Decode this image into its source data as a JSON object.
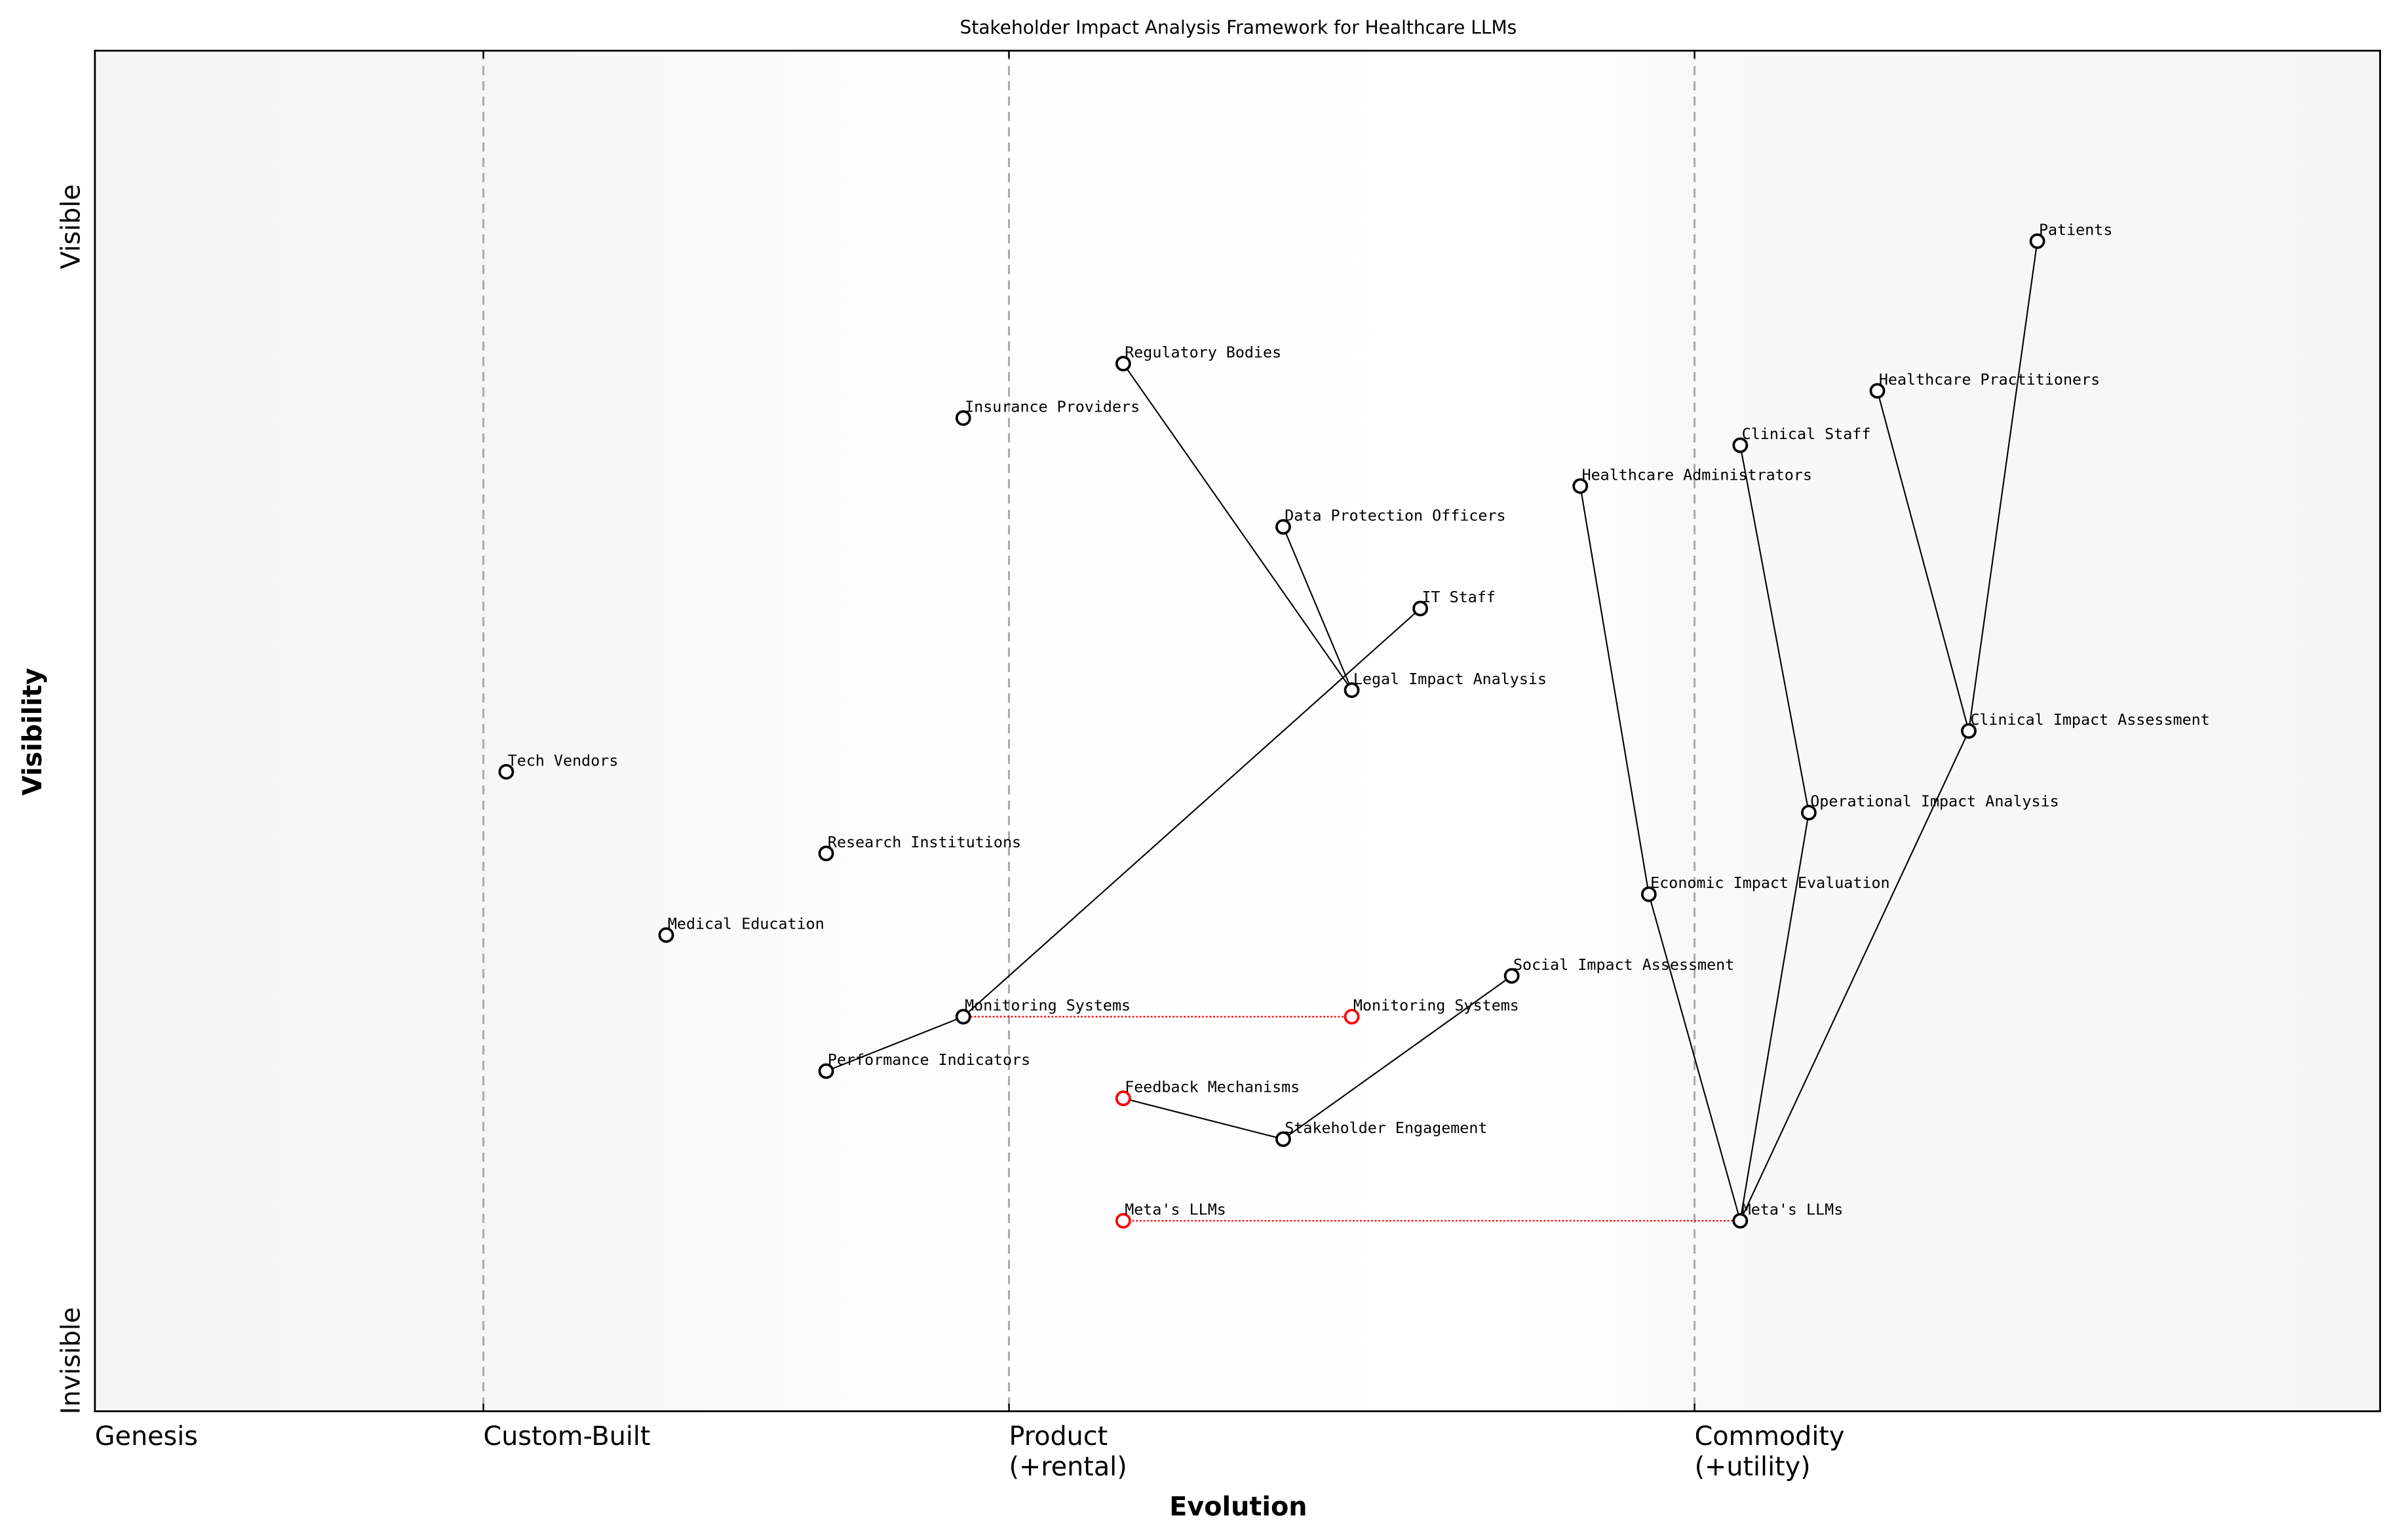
{
  "chart_data": {
    "type": "scatter",
    "title": "Stakeholder Impact Analysis Framework for Healthcare LLMs",
    "xlabel": "Evolution",
    "ylabel": "Visibility",
    "xlim": [
      0,
      1
    ],
    "ylim": [
      0,
      1
    ],
    "y_tick_labels": {
      "top": "Visible",
      "bottom": "Invisible"
    },
    "stages": [
      {
        "label": "Genesis",
        "x": 0.0
      },
      {
        "label": "Custom-Built",
        "x": 0.17
      },
      {
        "label": "Product\n(+rental)",
        "x": 0.4
      },
      {
        "label": "Commodity\n(+utility)",
        "x": 0.7
      }
    ],
    "grid": false,
    "components": [
      {
        "name": "Patients",
        "evolution": 0.85,
        "visibility": 0.86
      },
      {
        "name": "Healthcare Practitioners",
        "evolution": 0.78,
        "visibility": 0.75
      },
      {
        "name": "Clinical Staff",
        "evolution": 0.72,
        "visibility": 0.71
      },
      {
        "name": "Healthcare Administrators",
        "evolution": 0.65,
        "visibility": 0.68
      },
      {
        "name": "Regulatory Bodies",
        "evolution": 0.45,
        "visibility": 0.77
      },
      {
        "name": "Insurance Providers",
        "evolution": 0.38,
        "visibility": 0.73
      },
      {
        "name": "Data Protection Officers",
        "evolution": 0.52,
        "visibility": 0.65
      },
      {
        "name": "IT Staff",
        "evolution": 0.58,
        "visibility": 0.59
      },
      {
        "name": "Legal Impact Analysis",
        "evolution": 0.55,
        "visibility": 0.53
      },
      {
        "name": "Clinical Impact Assessment",
        "evolution": 0.82,
        "visibility": 0.5
      },
      {
        "name": "Tech Vendors",
        "evolution": 0.18,
        "visibility": 0.47
      },
      {
        "name": "Operational Impact Analysis",
        "evolution": 0.75,
        "visibility": 0.44
      },
      {
        "name": "Research Institutions",
        "evolution": 0.32,
        "visibility": 0.41
      },
      {
        "name": "Economic Impact Evaluation",
        "evolution": 0.68,
        "visibility": 0.38
      },
      {
        "name": "Medical Education",
        "evolution": 0.25,
        "visibility": 0.35
      },
      {
        "name": "Social Impact Assessment",
        "evolution": 0.62,
        "visibility": 0.32
      },
      {
        "name": "Monitoring Systems",
        "evolution": 0.38,
        "visibility": 0.29
      },
      {
        "name": "Performance Indicators",
        "evolution": 0.32,
        "visibility": 0.25
      },
      {
        "name": "Feedback Mechanisms",
        "evolution": 0.45,
        "visibility": 0.23
      },
      {
        "name": "Stakeholder Engagement",
        "evolution": 0.52,
        "visibility": 0.2
      },
      {
        "name": "Meta's LLMs",
        "evolution": 0.72,
        "visibility": 0.14
      }
    ],
    "links": [
      [
        "Patients",
        "Clinical Impact Assessment"
      ],
      [
        "Healthcare Practitioners",
        "Clinical Impact Assessment"
      ],
      [
        "Clinical Impact Assessment",
        "Meta's LLMs"
      ],
      [
        "Clinical Staff",
        "Operational Impact Analysis"
      ],
      [
        "Operational Impact Analysis",
        "Meta's LLMs"
      ],
      [
        "Healthcare Administrators",
        "Economic Impact Evaluation"
      ],
      [
        "Economic Impact Evaluation",
        "Meta's LLMs"
      ],
      [
        "Regulatory Bodies",
        "Legal Impact Analysis"
      ],
      [
        "Data Protection Officers",
        "Legal Impact Analysis"
      ],
      [
        "IT Staff",
        "Monitoring Systems"
      ],
      [
        "Performance Indicators",
        "Monitoring Systems"
      ],
      [
        "Social Impact Assessment",
        "Stakeholder Engagement"
      ],
      [
        "Stakeholder Engagement",
        "Feedback Mechanisms"
      ]
    ],
    "evolutions": [
      {
        "name": "Monitoring Systems",
        "from": 0.38,
        "to": 0.55,
        "visibility": 0.29
      },
      {
        "name": "Feedback Mechanisms",
        "from": 0.45,
        "to": 0.45,
        "visibility": 0.23
      },
      {
        "name": "Meta's LLMs",
        "from": 0.72,
        "to": 0.45,
        "visibility": 0.14
      }
    ],
    "colors": {
      "component": "#000000",
      "evolved": "#ff0000",
      "stage_line": "#aaaaaa",
      "shade": "#f5f5f5"
    }
  }
}
